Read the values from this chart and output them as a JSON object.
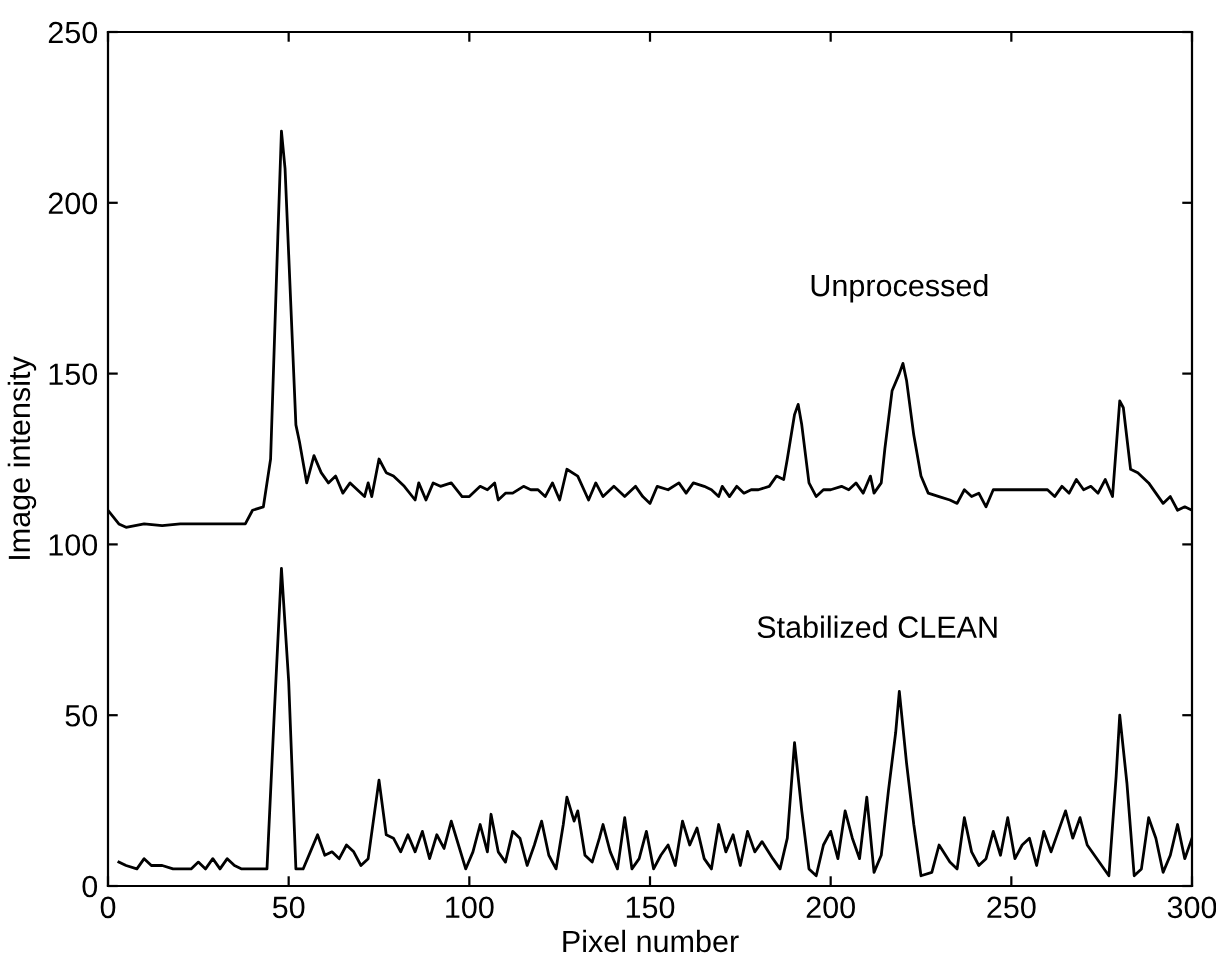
{
  "chart_data": {
    "type": "line",
    "xlabel": "Pixel number",
    "ylabel": "Image intensity",
    "xlim": [
      0,
      300
    ],
    "ylim": [
      0,
      250
    ],
    "xticks": [
      0,
      50,
      100,
      150,
      200,
      250,
      300
    ],
    "yticks": [
      0,
      50,
      100,
      150,
      200,
      250
    ],
    "grid": false,
    "legend": false,
    "marker": "none",
    "line_style": "solid",
    "series": [
      {
        "name": "Unprocessed",
        "color": "#000000",
        "x": [
          0,
          3,
          5,
          10,
          15,
          20,
          25,
          30,
          35,
          38,
          40,
          43,
          45,
          47,
          48,
          49,
          51,
          52,
          53,
          55,
          57,
          59,
          61,
          63,
          65,
          67,
          69,
          71,
          72,
          73,
          75,
          77,
          79,
          82,
          85,
          86,
          88,
          90,
          92,
          95,
          98,
          100,
          103,
          105,
          107,
          108,
          110,
          112,
          115,
          117,
          119,
          121,
          123,
          125,
          127,
          130,
          133,
          135,
          137,
          140,
          143,
          146,
          148,
          150,
          152,
          155,
          158,
          160,
          162,
          165,
          167,
          169,
          170,
          172,
          174,
          176,
          178,
          180,
          183,
          185,
          187,
          188,
          190,
          191,
          192,
          194,
          196,
          198,
          200,
          203,
          205,
          207,
          209,
          211,
          212,
          214,
          215,
          217,
          219,
          220,
          221,
          223,
          225,
          227,
          230,
          233,
          235,
          237,
          239,
          241,
          243,
          245,
          250,
          255,
          260,
          262,
          264,
          266,
          268,
          270,
          272,
          274,
          276,
          278,
          280,
          281,
          283,
          285,
          288,
          290,
          292,
          294,
          296,
          298,
          300
        ],
        "values": [
          110,
          106,
          105,
          106,
          105.5,
          106,
          106,
          106,
          106,
          106,
          110,
          111,
          125,
          190,
          221,
          210,
          160,
          135,
          130,
          118,
          126,
          121,
          118,
          120,
          115,
          118,
          116,
          114,
          118,
          114,
          125,
          121,
          120,
          117,
          113,
          118,
          113,
          118,
          117,
          118,
          114,
          114,
          117,
          116,
          118,
          113,
          115,
          115,
          117,
          116,
          116,
          114,
          118,
          113,
          122,
          120,
          113,
          118,
          114,
          117,
          114,
          117,
          114,
          112,
          117,
          116,
          118,
          115,
          118,
          117,
          116,
          114,
          117,
          114,
          117,
          115,
          116,
          116,
          117,
          120,
          119,
          125,
          138,
          141,
          135,
          118,
          114,
          116,
          116,
          117,
          116,
          118,
          115,
          120,
          115,
          118,
          128,
          145,
          150,
          153,
          148,
          132,
          120,
          115,
          114,
          113,
          112,
          116,
          114,
          115,
          111,
          116,
          116,
          116,
          116,
          114,
          117,
          115,
          119,
          116,
          117,
          115,
          119,
          114,
          142,
          140,
          122,
          121,
          118,
          115,
          112,
          114,
          110,
          111,
          110
        ]
      },
      {
        "name": "Stabilized CLEAN",
        "color": "#000000",
        "x": [
          3,
          5,
          8,
          10,
          12,
          15,
          18,
          20,
          23,
          25,
          27,
          29,
          31,
          33,
          35,
          37,
          40,
          44,
          46,
          48,
          50,
          52,
          54,
          56,
          58,
          60,
          62,
          64,
          66,
          68,
          70,
          72,
          75,
          77,
          79,
          81,
          83,
          85,
          87,
          89,
          91,
          93,
          95,
          97,
          99,
          101,
          103,
          105,
          106,
          108,
          110,
          112,
          114,
          116,
          118,
          120,
          122,
          124,
          126,
          127,
          129,
          130,
          132,
          134,
          136,
          137,
          139,
          141,
          143,
          145,
          147,
          149,
          151,
          153,
          155,
          157,
          159,
          161,
          163,
          165,
          167,
          169,
          171,
          173,
          175,
          177,
          179,
          181,
          184,
          186,
          188,
          190,
          192,
          194,
          196,
          198,
          200,
          202,
          204,
          206,
          208,
          210,
          212,
          214,
          216,
          218,
          219,
          221,
          223,
          225,
          228,
          230,
          233,
          235,
          237,
          239,
          241,
          243,
          245,
          247,
          249,
          251,
          253,
          255,
          257,
          259,
          261,
          263,
          265,
          267,
          269,
          271,
          275,
          277,
          279,
          280,
          282,
          284,
          286,
          288,
          290,
          292,
          294,
          296,
          298,
          300
        ],
        "values": [
          7,
          6,
          5,
          8,
          6,
          6,
          5,
          5,
          5,
          7,
          5,
          8,
          5,
          8,
          6,
          5,
          5,
          5,
          50,
          93,
          60,
          5,
          5,
          10,
          15,
          9,
          10,
          8,
          12,
          10,
          6,
          8,
          31,
          15,
          14,
          10,
          15,
          10,
          16,
          8,
          15,
          11,
          19,
          12,
          5,
          10,
          18,
          10,
          21,
          10,
          7,
          16,
          14,
          6,
          12,
          19,
          9,
          5,
          18,
          26,
          19,
          22,
          9,
          7,
          14,
          18,
          10,
          5,
          20,
          5,
          8,
          16,
          5,
          9,
          12,
          6,
          19,
          12,
          17,
          8,
          5,
          18,
          10,
          15,
          6,
          16,
          10,
          13,
          8,
          5,
          14,
          42,
          22,
          5,
          3,
          12,
          16,
          8,
          22,
          14,
          8,
          26,
          4,
          9,
          28,
          45,
          57,
          36,
          18,
          3,
          4,
          12,
          7,
          5,
          20,
          10,
          6,
          8,
          16,
          9,
          20,
          8,
          12,
          14,
          6,
          16,
          10,
          16,
          22,
          14,
          20,
          12,
          6,
          3,
          32,
          50,
          30,
          3,
          5,
          20,
          14,
          4,
          9,
          18,
          8,
          14
        ]
      }
    ]
  }
}
